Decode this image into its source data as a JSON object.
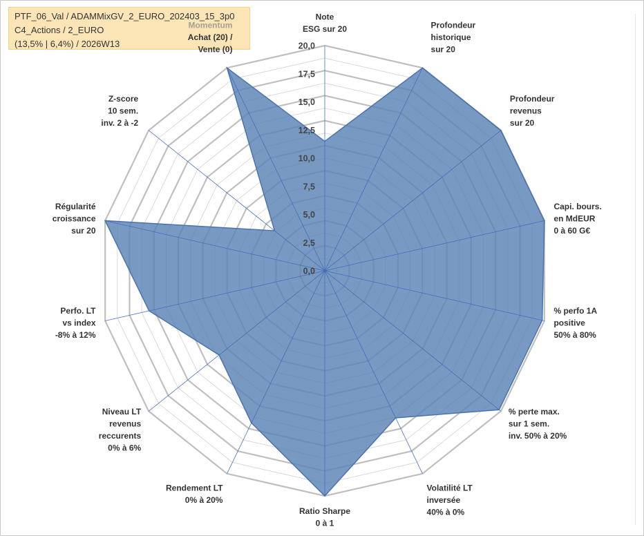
{
  "info": {
    "line1": "PTF_06_Val / ADAMMixGV_2_EURO_202403_15_3p0",
    "line2": "C4_Actions / 2_EURO",
    "line3": "(13,5% | 6,4%) / 2026W13"
  },
  "colors": {
    "fill": "#5a82b4",
    "stroke": "#4a72b0",
    "spoke": "#4a72c4",
    "ring_outer": "#bfbfbf",
    "ring_inner": "#d9d9d9"
  },
  "chart_data": {
    "type": "radar",
    "rmax": 20,
    "ticks": [
      "0,0",
      "2,5",
      "5,0",
      "7,5",
      "10,0",
      "12,5",
      "15,0",
      "17,5",
      "20,0"
    ],
    "axes": [
      {
        "lines": [
          "Note",
          "ESG sur 20"
        ],
        "value": 11.5
      },
      {
        "lines": [
          "Profondeur",
          "historique",
          "sur 20"
        ],
        "value": 20
      },
      {
        "lines": [
          "Profondeur",
          "revenus",
          "sur 20"
        ],
        "value": 20
      },
      {
        "lines": [
          "Capi. bours.",
          "en MdEUR",
          "0 à 60 G€"
        ],
        "value": 20
      },
      {
        "lines": [
          "% perfo 1A",
          "positive",
          "50% à 80%"
        ],
        "value": 19.8
      },
      {
        "lines": [
          "% perte max.",
          "sur 1 sem.",
          "inv. 50% à 20%"
        ],
        "value": 19.8
      },
      {
        "lines": [
          "Volatilité LT",
          "inversée",
          "40% à 0%"
        ],
        "value": 14.5
      },
      {
        "lines": [
          "Ratio Sharpe",
          "0 à 1"
        ],
        "value": 20
      },
      {
        "lines": [
          "Rendement LT",
          "0% à 20%"
        ],
        "value": 15
      },
      {
        "lines": [
          "Niveau LT",
          "revenus",
          "reccurents",
          "0% à 6%"
        ],
        "value": 12
      },
      {
        "lines": [
          "Perfo. LT",
          "vs index",
          "-8% à 12%"
        ],
        "value": 16
      },
      {
        "lines": [
          "Régularité",
          "croissance",
          "sur 20"
        ],
        "value": 20
      },
      {
        "lines": [
          "Z-score",
          "10 sem.",
          "inv. 2 à -2"
        ],
        "value": 5.7
      },
      {
        "lines": [
          "Momentum",
          "Achat (20) /",
          "Vente (0)"
        ],
        "value": 20
      }
    ]
  }
}
